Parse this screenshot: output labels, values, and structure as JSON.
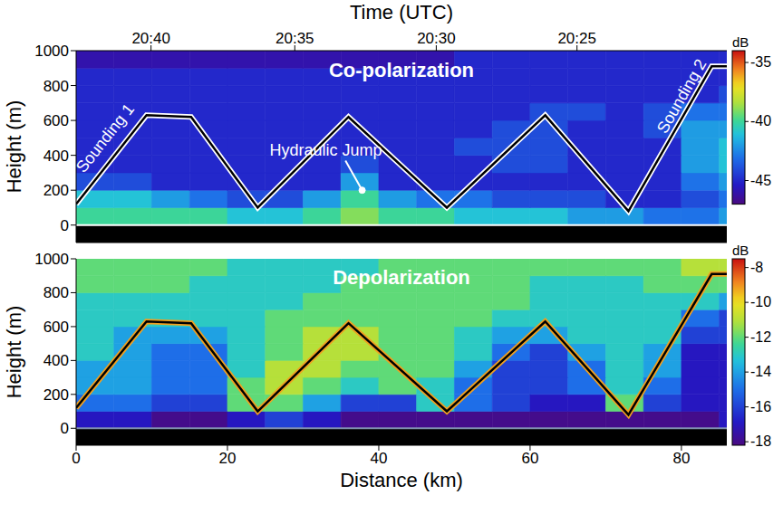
{
  "chart_data": [
    {
      "type": "heatmap",
      "title": "Co-polarization",
      "top_axis": {
        "label": "Time (UTC)",
        "ticks": [
          {
            "value": 9.9,
            "label": "20:40"
          },
          {
            "value": 28.9,
            "label": "20:35"
          },
          {
            "value": 47.6,
            "label": "20:30"
          },
          {
            "value": 66.2,
            "label": "20:25"
          }
        ]
      },
      "y_label": "Height (m)",
      "xlim": [
        0,
        86
      ],
      "xticks": [
        0,
        20,
        40,
        60,
        80
      ],
      "ylim": [
        -100,
        1000
      ],
      "yticks": [
        0,
        200,
        400,
        600,
        800,
        1000
      ],
      "tick_labels": "y",
      "ground_height": 0,
      "cells": {
        "x_edges": [
          0,
          5,
          10,
          15,
          20,
          25,
          30,
          35,
          40,
          45,
          50,
          55,
          60,
          65,
          70,
          75,
          80,
          85,
          86
        ],
        "y_edges": [
          0,
          100,
          200,
          300,
          400,
          500,
          600,
          700,
          800,
          900,
          1000
        ],
        "values": [
          [
            -40,
            -40,
            -40,
            -40,
            -41,
            -41,
            -40,
            -39,
            -40,
            -40,
            -41,
            -41,
            -41,
            -42,
            -42,
            -43,
            -43,
            -42
          ],
          [
            -41,
            -41,
            -42,
            -43,
            -44,
            -44,
            -42,
            -40,
            -42,
            -43,
            -43,
            -44,
            -44,
            -44,
            -45,
            -45,
            -44,
            -43
          ],
          [
            -44,
            -44,
            -45,
            -45,
            -45,
            -45,
            -45,
            -42,
            -45,
            -45,
            -45,
            -45,
            -45,
            -45,
            -45,
            -45,
            -43,
            -42
          ],
          [
            -45,
            -45,
            -45,
            -45,
            -45,
            -45,
            -45,
            -44,
            -45,
            -45,
            -45,
            -44,
            -44,
            -45,
            -45,
            -45,
            -42,
            -41
          ],
          [
            -45,
            -45,
            -45,
            -45,
            -45,
            -45,
            -45,
            -45,
            -45,
            -45,
            -44,
            -44,
            -44,
            -45,
            -45,
            -45,
            -42,
            -41
          ],
          [
            -45,
            -45,
            -45,
            -45,
            -45,
            -45,
            -45,
            -45,
            -45,
            -45,
            -45,
            -44,
            -44,
            -45,
            -45,
            -44,
            -42,
            -42
          ],
          [
            -45,
            -45,
            -45,
            -45,
            -45,
            -45,
            -45,
            -45,
            -45,
            -45,
            -45,
            -45,
            -44,
            -44,
            -45,
            -44,
            -43,
            -43
          ],
          [
            -45,
            -45,
            -45,
            -45,
            -45,
            -45,
            -45,
            -45,
            -45,
            -45,
            -45,
            -45,
            -45,
            -45,
            -45,
            -45,
            -45,
            -44
          ],
          [
            -45,
            -45,
            -45,
            -45,
            -45,
            -45,
            -45,
            -45,
            -45,
            -45,
            -45,
            -45,
            -45,
            -45,
            -45,
            -45,
            -45,
            -45
          ],
          [
            -46,
            -46,
            -46,
            -46,
            -46,
            -46,
            -46,
            -46,
            -46,
            -46,
            -45,
            -45,
            -45,
            -45,
            -45,
            -45,
            -45,
            -45
          ]
        ]
      },
      "colorbar": {
        "label": "dB",
        "range": [
          -47,
          -34
        ],
        "ticks": [
          -35,
          -40,
          -45
        ]
      },
      "track": {
        "color": "#000000",
        "x": [
          0,
          9.3,
          15.2,
          24,
          36,
          49,
          62,
          73,
          84,
          86
        ],
        "y": [
          120,
          630,
          620,
          100,
          620,
          100,
          630,
          80,
          910,
          910
        ]
      },
      "annotations": [
        {
          "text": "Sounding 1",
          "type": "track_label",
          "x": 3.8,
          "y": 500
        },
        {
          "text": "Hydraulic Jump",
          "type": "arrow",
          "x": 33,
          "y": 430,
          "arrow": [
            [
              35.6,
              370
            ],
            [
              37.8,
              200
            ]
          ]
        },
        {
          "text": "Sounding 2",
          "type": "track_label",
          "x": 80,
          "y": 740
        }
      ]
    },
    {
      "type": "heatmap",
      "title": "Depolarization",
      "x_label": "Distance (km)",
      "y_label": "Height (m)",
      "xlim": [
        0,
        86
      ],
      "xticks": [
        0,
        20,
        40,
        60,
        80
      ],
      "ylim": [
        -100,
        1000
      ],
      "yticks": [
        0,
        200,
        400,
        600,
        800,
        1000
      ],
      "tick_labels": true,
      "ground_height": 0,
      "cells": {
        "x_edges": [
          0,
          5,
          10,
          15,
          20,
          25,
          30,
          35,
          40,
          45,
          50,
          55,
          60,
          65,
          70,
          75,
          80,
          85,
          86
        ],
        "y_edges": [
          0,
          100,
          200,
          300,
          400,
          500,
          600,
          700,
          800,
          900,
          1000
        ],
        "values": [
          [
            -17,
            -17,
            -18,
            -18,
            -17,
            -16,
            -17,
            -18,
            -18,
            -18,
            -18,
            -18,
            -18,
            -18,
            -18,
            -18,
            -18,
            -17
          ],
          [
            -15,
            -15,
            -16,
            -16,
            -12,
            -12,
            -14,
            -16,
            -16,
            -13,
            -15,
            -16,
            -17,
            -17,
            -12,
            -16,
            -17,
            -17
          ],
          [
            -14,
            -14,
            -15,
            -15,
            -12,
            -11,
            -12,
            -13,
            -12,
            -13,
            -15,
            -16,
            -16,
            -15,
            -13,
            -15,
            -17,
            -17
          ],
          [
            -14,
            -14,
            -15,
            -15,
            -13,
            -11,
            -11,
            -12,
            -12,
            -12,
            -14,
            -16,
            -16,
            -15,
            -13,
            -14,
            -17,
            -17
          ],
          [
            -13,
            -14,
            -15,
            -15,
            -13,
            -12,
            -11,
            -11,
            -12,
            -12,
            -13,
            -15,
            -16,
            -14,
            -13,
            -14,
            -17,
            -17
          ],
          [
            -13,
            -14,
            -14,
            -14,
            -13,
            -12,
            -11,
            -11,
            -12,
            -12,
            -13,
            -14,
            -14,
            -13,
            -13,
            -13,
            -16,
            -16
          ],
          [
            -13,
            -13,
            -13,
            -13,
            -13,
            -12,
            -12,
            -12,
            -12,
            -12,
            -12,
            -13,
            -13,
            -13,
            -13,
            -13,
            -15,
            -16
          ],
          [
            -13,
            -13,
            -13,
            -13,
            -13,
            -13,
            -12,
            -12,
            -12,
            -12,
            -12,
            -12,
            -13,
            -13,
            -13,
            -13,
            -13,
            -14
          ],
          [
            -12,
            -12,
            -12,
            -13,
            -13,
            -13,
            -13,
            -12,
            -12,
            -12,
            -12,
            -12,
            -13,
            -13,
            -13,
            -12,
            -12,
            -12
          ],
          [
            -12,
            -12,
            -12,
            -12,
            -13,
            -13,
            -13,
            -13,
            -12,
            -12,
            -12,
            -12,
            -12,
            -12,
            -12,
            -12,
            -11,
            -11
          ]
        ]
      },
      "colorbar": {
        "label": "dB",
        "range": [
          -18.2,
          -7.5
        ],
        "ticks": [
          -8,
          -10,
          -12,
          -14,
          -16,
          -18
        ]
      },
      "track": {
        "color": "#000000",
        "x": [
          0,
          9.3,
          15.2,
          24,
          36,
          49,
          62,
          73,
          84,
          86
        ],
        "y": [
          120,
          630,
          620,
          100,
          620,
          100,
          630,
          80,
          910,
          910
        ]
      },
      "annotations": []
    }
  ]
}
